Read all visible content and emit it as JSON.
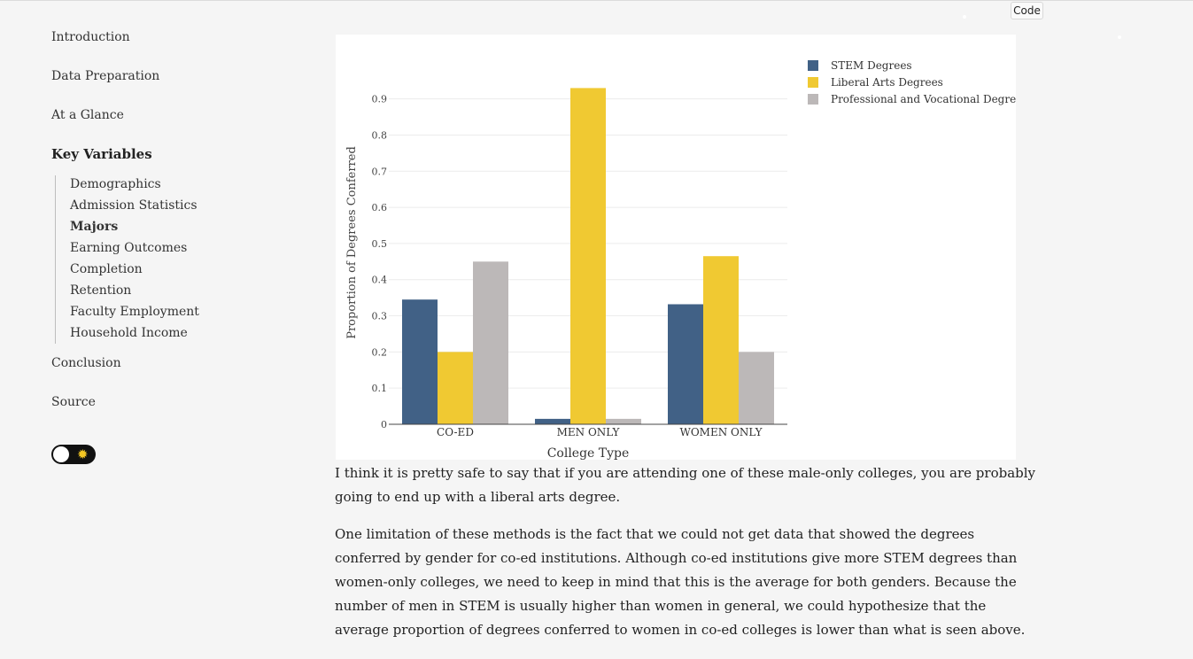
{
  "toolbar": {
    "code_label": "Code"
  },
  "sidebar": {
    "items": [
      {
        "label": "Introduction"
      },
      {
        "label": "Data Preparation"
      },
      {
        "label": "At a Glance"
      },
      {
        "label": "Key Variables"
      },
      {
        "label": "Conclusion"
      },
      {
        "label": "Source"
      }
    ],
    "subitems": [
      {
        "label": "Demographics"
      },
      {
        "label": "Admission Statistics"
      },
      {
        "label": "Majors"
      },
      {
        "label": "Earning Outcomes"
      },
      {
        "label": "Completion"
      },
      {
        "label": "Retention"
      },
      {
        "label": "Faculty Employment"
      },
      {
        "label": "Household Income"
      }
    ],
    "theme_toggle_icon": "sun-icon"
  },
  "chart_data": {
    "type": "bar",
    "categories": [
      "CO-ED",
      "MEN ONLY",
      "WOMEN ONLY"
    ],
    "series": [
      {
        "name": "STEM Degrees",
        "color": "#416186",
        "values": [
          0.345,
          0.015,
          0.332
        ]
      },
      {
        "name": "Liberal Arts Degrees",
        "color": "#f0c932",
        "values": [
          0.2,
          0.93,
          0.465
        ]
      },
      {
        "name": "Professional and Vocational Degrees",
        "color": "#bcb8b8",
        "values": [
          0.45,
          0.015,
          0.2
        ]
      }
    ],
    "yticks": [
      "0",
      "0.1",
      "0.2",
      "0.3",
      "0.4",
      "0.5",
      "0.6",
      "0.7",
      "0.8",
      "0.9"
    ],
    "ylim": [
      0,
      0.98
    ],
    "xlabel": "College Type",
    "ylabel": "Proportion of Degrees Conferred",
    "grid": true,
    "legend_position": "top-right"
  },
  "content": {
    "paragraph1": "I think it is pretty safe to say that if you are attending one of these male-only colleges, you are probably going to end up with a liberal arts degree.",
    "paragraph2": "One limitation of these methods is the fact that we could not get data that showed the degrees conferred by gender for co-ed institutions. Although co-ed institutions give more STEM degrees than women-only colleges, we need to keep in mind that this is the average for both genders. Because the number of men in STEM is usually higher than women in general, we could hypothesize that the average proportion of degrees conferred to women in co-ed colleges is lower than what is seen above."
  }
}
